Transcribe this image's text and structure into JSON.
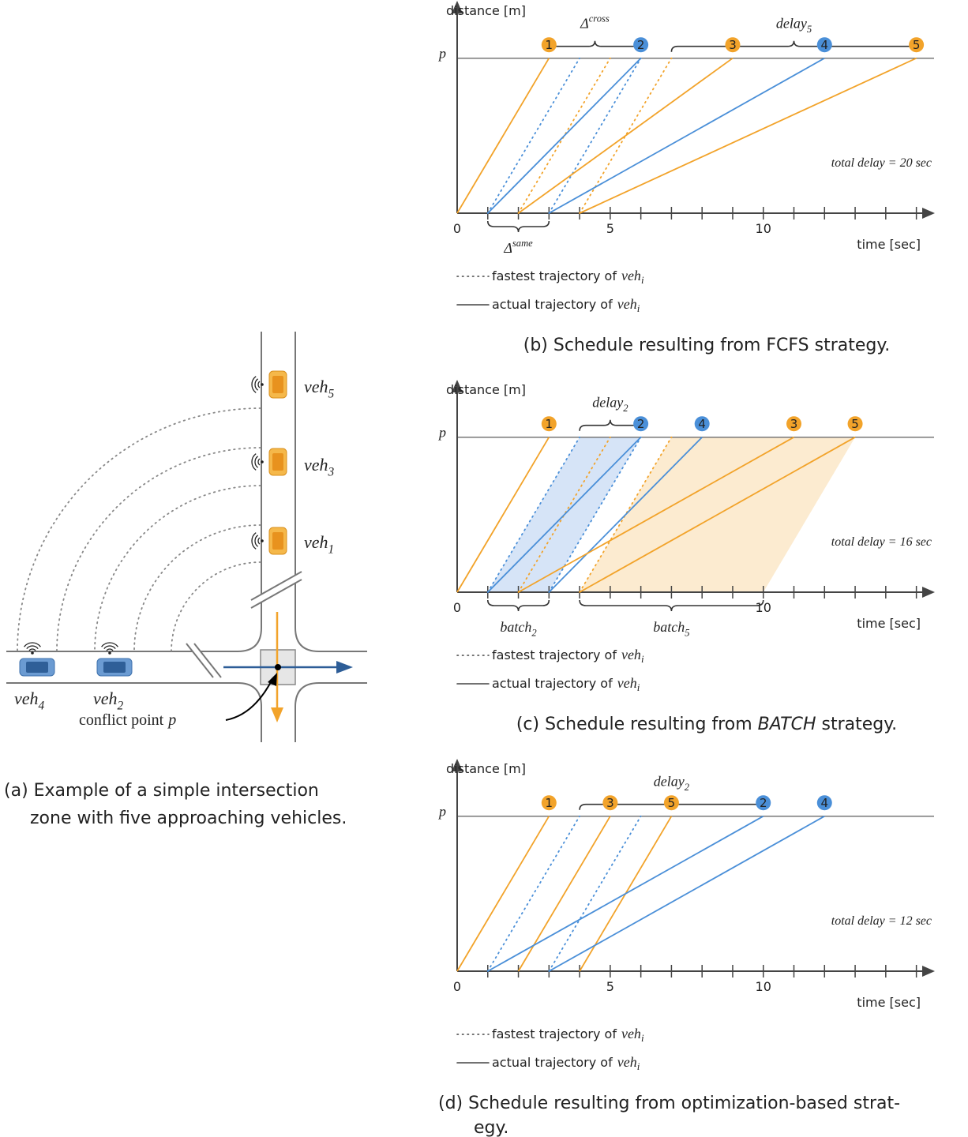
{
  "diagram": {
    "vehicles": [
      {
        "label": {
          "base": "veh",
          "sub": "5"
        }
      },
      {
        "label": {
          "base": "veh",
          "sub": "3"
        }
      },
      {
        "label": {
          "base": "veh",
          "sub": "1"
        }
      },
      {
        "label": {
          "base": "veh",
          "sub": "4"
        }
      },
      {
        "label": {
          "base": "veh",
          "sub": "2"
        }
      }
    ],
    "conflict_label": {
      "text": "conflict point",
      "var": "p"
    },
    "caption": [
      "(a) Example of a simple intersection",
      "zone with five approaching vehicles."
    ]
  },
  "chart_data": [
    {
      "type": "line",
      "y_label": "distance [m]",
      "x_label": "time [sec]",
      "xlim": [
        0,
        15.5
      ],
      "ylim": [
        0,
        1.35
      ],
      "xticks": [
        0,
        5,
        10
      ],
      "xminor_ticks": [
        1,
        2,
        3,
        4,
        5,
        6,
        7,
        8,
        9,
        10,
        11,
        12,
        13,
        14,
        15
      ],
      "yticks": [
        {
          "value": 1,
          "label": "p"
        }
      ],
      "series": [
        {
          "name": "1",
          "color": "#f2a32a",
          "x": [
            0,
            3
          ],
          "values": [
            0,
            1
          ]
        },
        {
          "name": "2",
          "color": "#4a8fd8",
          "x": [
            1,
            6
          ],
          "values": [
            0,
            1
          ],
          "fastest_x": [
            1,
            4
          ]
        },
        {
          "name": "3",
          "color": "#f2a32a",
          "x": [
            2,
            9
          ],
          "values": [
            0,
            1
          ],
          "fastest_x": [
            2,
            5
          ]
        },
        {
          "name": "4",
          "color": "#4a8fd8",
          "x": [
            3,
            12
          ],
          "values": [
            0,
            1
          ],
          "fastest_x": [
            3,
            6
          ]
        },
        {
          "name": "5",
          "color": "#f2a32a",
          "x": [
            4,
            15
          ],
          "values": [
            0,
            1
          ],
          "fastest_x": [
            4,
            7
          ]
        }
      ],
      "braces": [
        {
          "x": [
            3,
            6
          ],
          "side": "top",
          "label": {
            "base": "Δ",
            "sup": "cross"
          }
        },
        {
          "x": [
            7,
            15
          ],
          "side": "top",
          "label": {
            "base": "delay",
            "sub": "5"
          }
        },
        {
          "x": [
            1,
            3
          ],
          "side": "bottom",
          "label": {
            "base": "Δ",
            "sup": "same"
          }
        }
      ],
      "total_delay": "total delay = 20 sec",
      "legend": [
        {
          "style": "dotted",
          "text": "fastest trajectory of",
          "var": "veh",
          "sub": "i"
        },
        {
          "style": "solid",
          "text": "actual trajectory of",
          "var": "veh",
          "sub": "i"
        }
      ],
      "caption": [
        [
          "(b) Schedule resulting from FCFS strategy."
        ]
      ]
    },
    {
      "type": "line",
      "y_label": "distance [m]",
      "x_label": "time [sec]",
      "xlim": [
        0,
        15.5
      ],
      "ylim": [
        0,
        1.35
      ],
      "xticks": [
        0,
        10
      ],
      "xminor_ticks": [
        1,
        2,
        3,
        4,
        5,
        6,
        7,
        8,
        9,
        10,
        11,
        12,
        13,
        14,
        15
      ],
      "yticks": [
        {
          "value": 1,
          "label": "p"
        }
      ],
      "shaded": [
        {
          "color": "#d6e4f7",
          "x_bottom": [
            1,
            3
          ],
          "x_top": [
            4,
            6
          ]
        },
        {
          "color": "#fcebd0",
          "x_bottom": [
            4,
            10
          ],
          "x_top": [
            7,
            13
          ]
        }
      ],
      "series": [
        {
          "name": "1",
          "color": "#f2a32a",
          "x": [
            0,
            3
          ],
          "values": [
            0,
            1
          ]
        },
        {
          "name": "2",
          "color": "#4a8fd8",
          "x": [
            1,
            6
          ],
          "values": [
            0,
            1
          ],
          "fastest_x": [
            1,
            4
          ]
        },
        {
          "name": "4",
          "color": "#4a8fd8",
          "x": [
            3,
            8
          ],
          "values": [
            0,
            1
          ],
          "fastest_x": [
            3,
            6
          ]
        },
        {
          "name": "3",
          "color": "#f2a32a",
          "x": [
            2,
            11
          ],
          "values": [
            0,
            1
          ],
          "fastest_x": [
            2,
            5
          ]
        },
        {
          "name": "5",
          "color": "#f2a32a",
          "x": [
            4,
            13
          ],
          "values": [
            0,
            1
          ],
          "fastest_x": [
            4,
            7
          ]
        }
      ],
      "braces": [
        {
          "x": [
            4,
            6
          ],
          "side": "top",
          "label": {
            "base": "delay",
            "sub": "2"
          }
        },
        {
          "x": [
            1,
            3
          ],
          "side": "bottom",
          "label": {
            "base": "batch",
            "sub": "2"
          }
        },
        {
          "x": [
            4,
            10
          ],
          "side": "bottom",
          "label": {
            "base": "batch",
            "sub": "5"
          }
        }
      ],
      "total_delay": "total delay = 16 sec",
      "legend": [
        {
          "style": "dotted",
          "text": "fastest trajectory of",
          "var": "veh",
          "sub": "i"
        },
        {
          "style": "solid",
          "text": "actual trajectory of",
          "var": "veh",
          "sub": "i"
        }
      ],
      "caption": [
        [
          "(c) Schedule resulting from ",
          {
            "text": "BATCH",
            "style": "italic"
          },
          " strategy."
        ]
      ]
    },
    {
      "type": "line",
      "y_label": "distance [m]",
      "x_label": "time [sec]",
      "xlim": [
        0,
        15.5
      ],
      "ylim": [
        0,
        1.35
      ],
      "xticks": [
        0,
        5,
        10
      ],
      "xminor_ticks": [
        1,
        2,
        3,
        4,
        5,
        6,
        7,
        8,
        9,
        10,
        11,
        12,
        13,
        14,
        15
      ],
      "yticks": [
        {
          "value": 1,
          "label": "p"
        }
      ],
      "series": [
        {
          "name": "1",
          "color": "#f2a32a",
          "x": [
            0,
            3
          ],
          "values": [
            0,
            1
          ]
        },
        {
          "name": "3",
          "color": "#f2a32a",
          "x": [
            2,
            5
          ],
          "values": [
            0,
            1
          ]
        },
        {
          "name": "5",
          "color": "#f2a32a",
          "x": [
            4,
            7
          ],
          "values": [
            0,
            1
          ]
        },
        {
          "name": "2",
          "color": "#4a8fd8",
          "x": [
            1,
            10
          ],
          "values": [
            0,
            1
          ],
          "fastest_x": [
            1,
            4
          ]
        },
        {
          "name": "4",
          "color": "#4a8fd8",
          "x": [
            3,
            12
          ],
          "values": [
            0,
            1
          ],
          "fastest_x": [
            3,
            6
          ]
        }
      ],
      "braces": [
        {
          "x": [
            4,
            10
          ],
          "side": "top",
          "label": {
            "base": "delay",
            "sub": "2"
          }
        }
      ],
      "total_delay": "total delay = 12 sec",
      "legend": [
        {
          "style": "dotted",
          "text": "fastest trajectory of",
          "var": "veh",
          "sub": "i"
        },
        {
          "style": "solid",
          "text": "actual trajectory of",
          "var": "veh",
          "sub": "i"
        }
      ],
      "caption": [
        [
          "(d) Schedule resulting from optimization-based strat-"
        ],
        [
          "egy."
        ]
      ]
    }
  ]
}
